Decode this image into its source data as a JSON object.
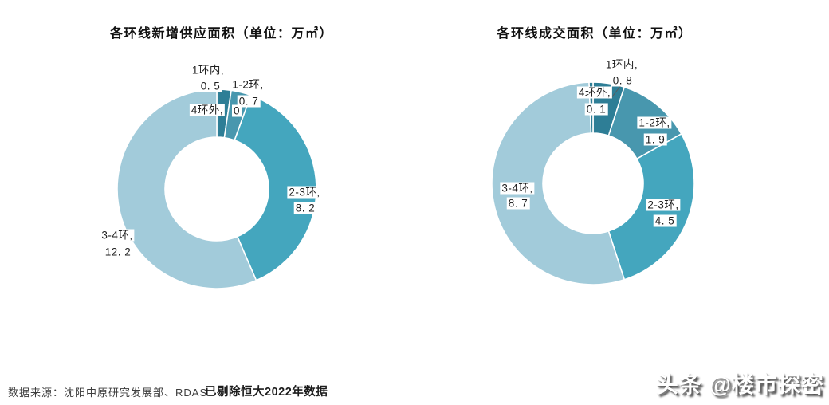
{
  "chart_data": [
    {
      "type": "pie",
      "subtype": "donut",
      "title": "各环线新增供应面积（单位：万㎡）",
      "unit": "万㎡",
      "categories": [
        "1环内",
        "1-2环",
        "2-3环",
        "3-4环",
        "4环外"
      ],
      "values": [
        0.5,
        0.7,
        8.2,
        12.2,
        0
      ],
      "name_labels": [
        "1环内,",
        "1-2环,",
        "2-3环,",
        "3-4环,",
        "4环外,"
      ],
      "value_labels": [
        "0. 5",
        "0. 7",
        "8. 2",
        "12. 2",
        "0"
      ],
      "colors": [
        "#2E7E96",
        "#4897AE",
        "#44A6BE",
        "#A2CBDA",
        "#2E7E96"
      ],
      "legend": "none",
      "data_labels": "category-and-value",
      "separator_color": "#ffffff"
    },
    {
      "type": "pie",
      "subtype": "donut",
      "title": "各环线成交面积（单位：万㎡）",
      "unit": "万㎡",
      "categories": [
        "1环内",
        "1-2环",
        "2-3环",
        "3-4环",
        "4环外"
      ],
      "values": [
        0.8,
        1.9,
        4.5,
        8.7,
        0.1
      ],
      "name_labels": [
        "1环内,",
        "1-2环,",
        "2-3环,",
        "3-4环,",
        "4环外,"
      ],
      "value_labels": [
        "0. 8",
        "1. 9",
        "4. 5",
        "8. 7",
        "0. 1"
      ],
      "colors": [
        "#2E7E96",
        "#4897AE",
        "#44A6BE",
        "#A2CBDA",
        "#2E7E96"
      ],
      "legend": "none",
      "data_labels": "category-and-value",
      "separator_color": "#ffffff"
    }
  ],
  "footer": {
    "source": "数据来源：沈阳中原研究发展部、RDAS",
    "note": "已剔除恒大2022年数据"
  },
  "watermark": {
    "text": "头条 @楼市探密"
  }
}
